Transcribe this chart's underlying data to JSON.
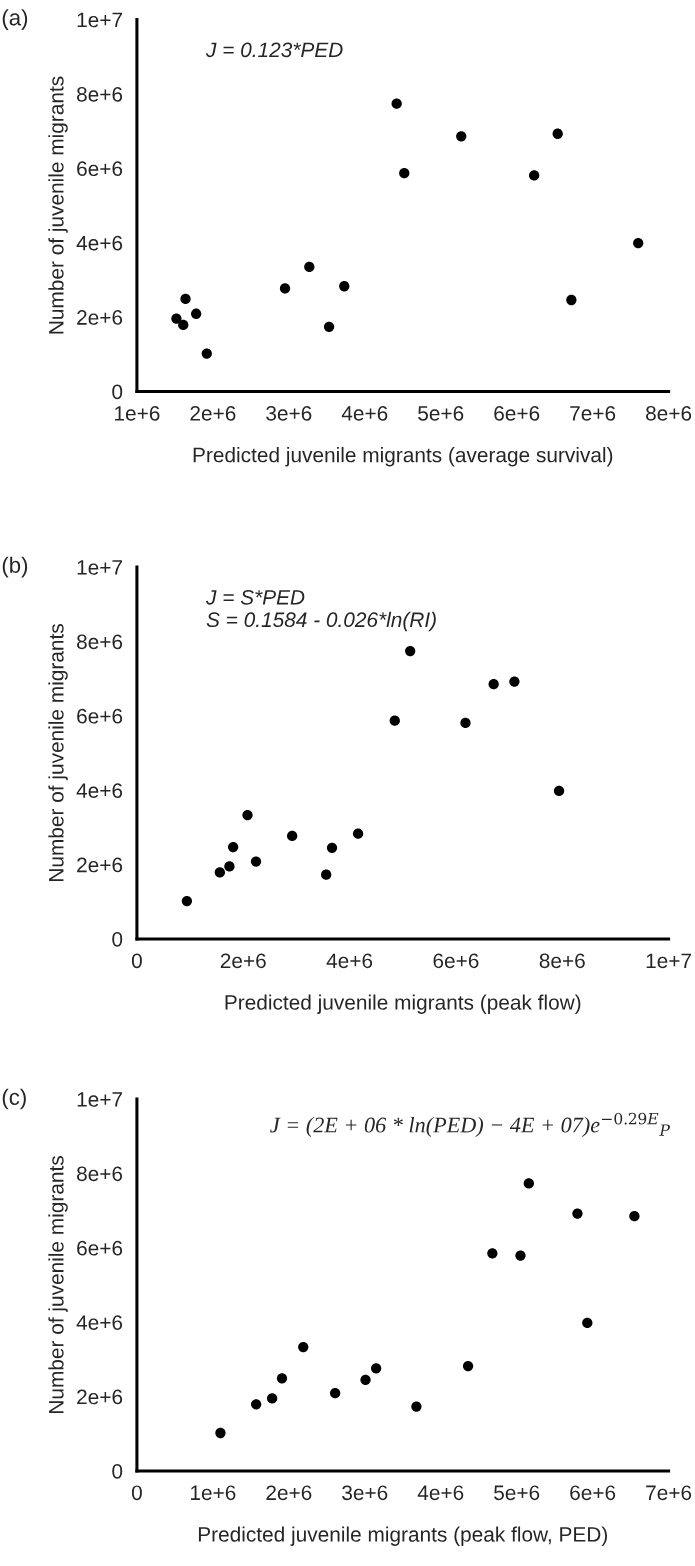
{
  "chart_data": [
    {
      "type": "scatter",
      "title": "(a)",
      "xlabel": "Predicted juvenile migrants (average survival)",
      "ylabel": "Number of juvenile migrants",
      "annotations": [
        "J = 0.123*PED"
      ],
      "marker": "circle",
      "grid": false,
      "legend": false,
      "xlim": [
        1000000,
        8000000
      ],
      "ylim": [
        0,
        10000000
      ],
      "xticks": [
        {
          "value": 1000000,
          "label": "1e+6"
        },
        {
          "value": 2000000,
          "label": "2e+6"
        },
        {
          "value": 3000000,
          "label": "3e+6"
        },
        {
          "value": 4000000,
          "label": "4e+6"
        },
        {
          "value": 5000000,
          "label": "5e+6"
        },
        {
          "value": 6000000,
          "label": "6e+6"
        },
        {
          "value": 7000000,
          "label": "7e+6"
        },
        {
          "value": 8000000,
          "label": "8e+6"
        }
      ],
      "yticks": [
        0,
        {
          "value": 2000000,
          "label": "2e+6"
        },
        {
          "value": 4000000,
          "label": "4e+6"
        },
        {
          "value": 6000000,
          "label": "6e+6"
        },
        {
          "value": 8000000,
          "label": "8e+6"
        },
        {
          "value": 10000000,
          "label": "1e+7"
        }
      ],
      "series": [
        {
          "color": "#000000",
          "x": [
            1520000,
            1610000,
            1640000,
            1780000,
            1920000,
            2950000,
            3270000,
            3530000,
            3730000,
            4420000,
            4520000,
            5270000,
            6230000,
            6540000,
            6720000,
            7600000
          ],
          "values": [
            1960000,
            1790000,
            2490000,
            2090000,
            1020000,
            2770000,
            3350000,
            1740000,
            2830000,
            7740000,
            5870000,
            6860000,
            5810000,
            6930000,
            2460000,
            3990000
          ]
        }
      ]
    },
    {
      "type": "scatter",
      "title": "(b)",
      "xlabel": "Predicted juvenile migrants (peak flow)",
      "ylabel": "Number of juvenile migrants",
      "annotations": [
        "J = S*PED\nS = 0.1584 - 0.026*ln(RI)"
      ],
      "marker": "circle",
      "grid": false,
      "legend": false,
      "xlim": [
        0,
        10000000
      ],
      "ylim": [
        0,
        10000000
      ],
      "xticks": [
        0,
        {
          "value": 2000000,
          "label": "2e+6"
        },
        {
          "value": 4000000,
          "label": "4e+6"
        },
        {
          "value": 6000000,
          "label": "6e+6"
        },
        {
          "value": 8000000,
          "label": "8e+6"
        },
        {
          "value": 10000000,
          "label": "1e+7"
        }
      ],
      "yticks": [
        0,
        {
          "value": 2000000,
          "label": "2e+6"
        },
        {
          "value": 4000000,
          "label": "4e+6"
        },
        {
          "value": 6000000,
          "label": "6e+6"
        },
        {
          "value": 8000000,
          "label": "8e+6"
        },
        {
          "value": 10000000,
          "label": "1e+7"
        }
      ],
      "series": [
        {
          "color": "#000000",
          "x": [
            940000,
            1560000,
            1740000,
            1810000,
            2080000,
            2240000,
            2920000,
            3560000,
            3670000,
            4160000,
            4850000,
            5140000,
            6180000,
            6710000,
            7100000,
            7940000
          ],
          "values": [
            1020000,
            1790000,
            1950000,
            2470000,
            3330000,
            2080000,
            2770000,
            1730000,
            2450000,
            2830000,
            5870000,
            7740000,
            5810000,
            6850000,
            6920000,
            3980000
          ]
        }
      ]
    },
    {
      "type": "scatter",
      "title": "(c)",
      "xlabel": "Predicted juvenile migrants (peak flow, PED)",
      "ylabel": "Number of juvenile migrants",
      "annotations": [
        "J = (2E + 06 * ln(PED) − 4E + 07)e$^{−0.29E}$$_{P}$"
      ],
      "marker": "circle",
      "grid": false,
      "legend": false,
      "xlim": [
        0,
        7000000
      ],
      "ylim": [
        0,
        10000000
      ],
      "xticks": [
        0,
        {
          "value": 1000000,
          "label": "1e+6"
        },
        {
          "value": 2000000,
          "label": "2e+6"
        },
        {
          "value": 3000000,
          "label": "3e+6"
        },
        {
          "value": 4000000,
          "label": "4e+6"
        },
        {
          "value": 5000000,
          "label": "5e+6"
        },
        {
          "value": 6000000,
          "label": "6e+6"
        },
        {
          "value": 7000000,
          "label": "7e+6"
        }
      ],
      "yticks": [
        0,
        {
          "value": 2000000,
          "label": "2e+6"
        },
        {
          "value": 4000000,
          "label": "4e+6"
        },
        {
          "value": 6000000,
          "label": "6e+6"
        },
        {
          "value": 8000000,
          "label": "8e+6"
        },
        {
          "value": 10000000,
          "label": "1e+7"
        }
      ],
      "series": [
        {
          "color": "#000000",
          "x": [
            1100000,
            1570000,
            1780000,
            1910000,
            2190000,
            2610000,
            3010000,
            3150000,
            3680000,
            4360000,
            4680000,
            5050000,
            5160000,
            5800000,
            5930000,
            6550000
          ],
          "values": [
            1020000,
            1790000,
            1950000,
            2490000,
            3330000,
            2090000,
            2450000,
            2760000,
            1730000,
            2820000,
            5850000,
            5790000,
            7730000,
            6920000,
            3980000,
            6850000
          ]
        }
      ]
    }
  ]
}
